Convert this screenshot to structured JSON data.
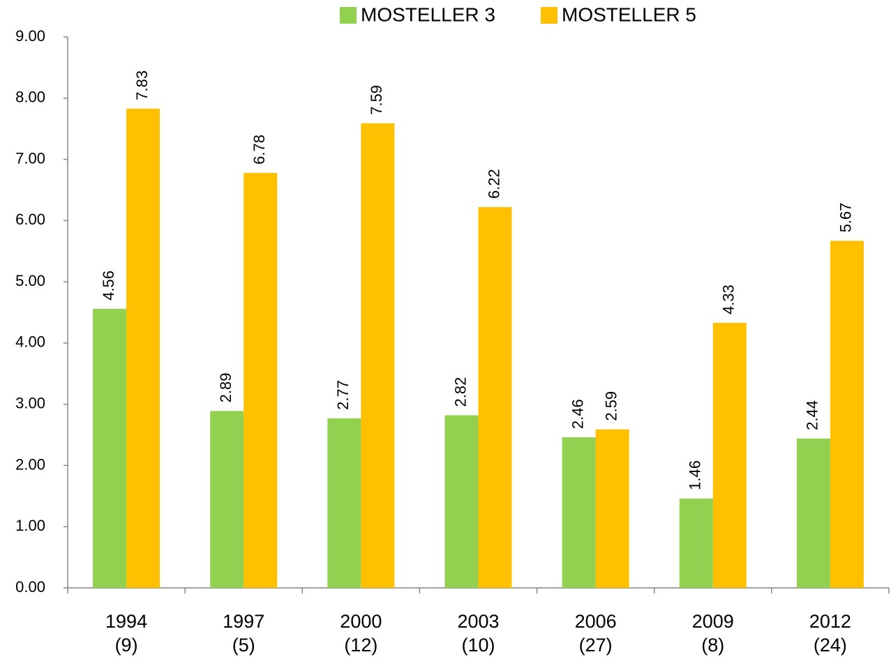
{
  "chart_data": {
    "type": "bar",
    "categories": [
      "1994\n(9)",
      "1997\n(5)",
      "2000\n(12)",
      "2003\n(10)",
      "2006\n(27)",
      "2009\n(8)",
      "2012\n(24)"
    ],
    "series": [
      {
        "name": "MOSTELLER 3",
        "color": "#92d050",
        "values": [
          4.56,
          2.89,
          2.77,
          2.82,
          2.46,
          1.46,
          2.44
        ]
      },
      {
        "name": "MOSTELLER 5",
        "color": "#ffc000",
        "values": [
          7.83,
          6.78,
          7.59,
          6.22,
          2.59,
          4.33,
          5.67
        ]
      }
    ],
    "ylim": [
      0,
      9
    ],
    "yticks": [
      {
        "value": 0,
        "label": "0.00"
      },
      {
        "value": 1,
        "label": "1.00"
      },
      {
        "value": 2,
        "label": "2.00"
      },
      {
        "value": 3,
        "label": "3.00"
      },
      {
        "value": 4,
        "label": "4.00"
      },
      {
        "value": 5,
        "label": "5.00"
      },
      {
        "value": 6,
        "label": "6.00"
      },
      {
        "value": 7,
        "label": "7.00"
      },
      {
        "value": 8,
        "label": "8.00"
      },
      {
        "value": 9,
        "label": "9.00"
      }
    ],
    "legend": "top"
  }
}
